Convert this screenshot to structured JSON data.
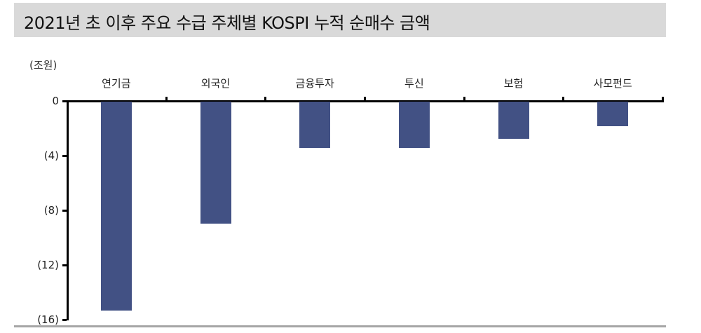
{
  "title": "2021년 초 이후 주요 수급 주체별 KOSPI 누적 순매수 금액",
  "colors": {
    "bar": "#425184",
    "title_bg": "#d9d9d9",
    "axis": "#000000"
  },
  "chart_data": {
    "type": "bar",
    "title": "2021년 초 이후 주요 수급 주체별 KOSPI 누적 순매수 금액",
    "ylabel": "(조원)",
    "xlabel": "",
    "categories": [
      "연기금",
      "외국인",
      "금융투자",
      "투신",
      "보험",
      "사모펀드"
    ],
    "values": [
      -15.3,
      -8.9,
      -3.4,
      -3.4,
      -2.7,
      -1.8
    ],
    "ylim": [
      -16,
      0
    ],
    "yticks": [
      0,
      -4,
      -8,
      -12,
      -16
    ],
    "ytick_labels": [
      "0",
      "(4)",
      "(8)",
      "(12)",
      "(16)"
    ],
    "x_axis_position": "top",
    "grid": false,
    "legend": null
  }
}
